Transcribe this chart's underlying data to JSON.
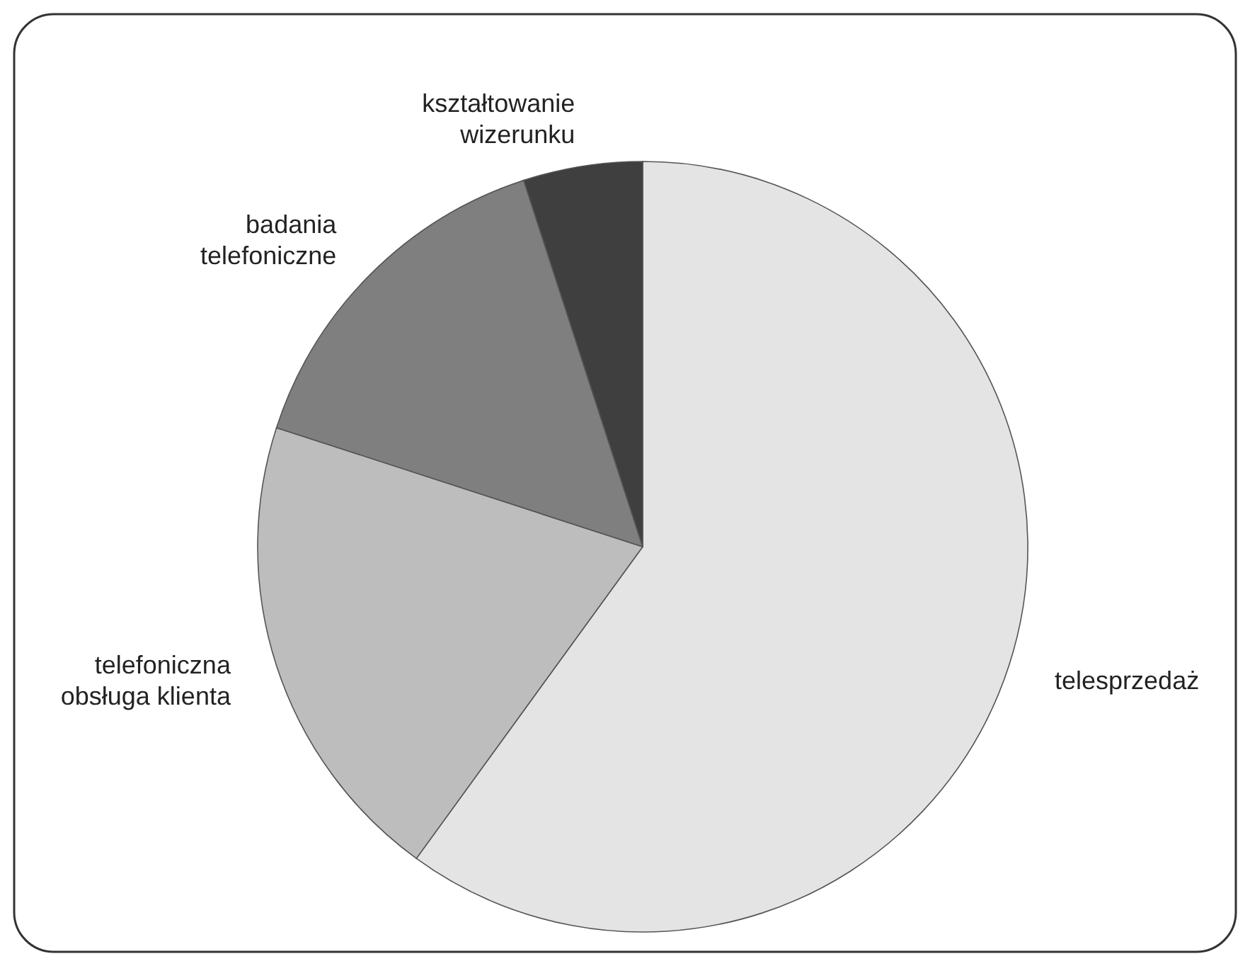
{
  "chart_data": {
    "type": "pie",
    "categories": [
      "telesprzedaż",
      "telefoniczna obsługa klienta",
      "badania telefoniczne",
      "kształtowanie wizerunku"
    ],
    "values": [
      60,
      20,
      15,
      5
    ],
    "colors": [
      "#e4e4e4",
      "#bdbdbd",
      "#7f7f7f",
      "#3f3f3f"
    ]
  }
}
